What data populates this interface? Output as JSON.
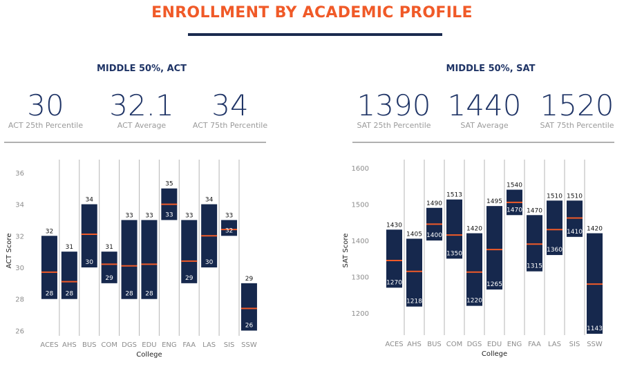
{
  "title": "ENROLLMENT BY ACADEMIC PROFILE",
  "act_section": {
    "heading": "MIDDLE 50%, ACT",
    "stats": [
      {
        "value": "30",
        "label": "ACT 25th Percentile"
      },
      {
        "value": "32.1",
        "label": "ACT Average"
      },
      {
        "value": "34",
        "label": "ACT 75th Percentile"
      }
    ]
  },
  "sat_section": {
    "heading": "MIDDLE 50%, SAT",
    "stats": [
      {
        "value": "1390",
        "label": "SAT 25th Percentile"
      },
      {
        "value": "1440",
        "label": "SAT Average"
      },
      {
        "value": "1520",
        "label": "SAT 75th Percentile"
      }
    ]
  },
  "colors": {
    "title": "#f05a28",
    "navy": "#16284d",
    "heading": "#1f3466",
    "median_line": "#f05a28",
    "grid": "#b5b5b5",
    "tick_text": "#8c8c8c"
  },
  "chart_data": [
    {
      "type": "bar",
      "subtype": "floating-range",
      "categories": [
        "ACES",
        "AHS",
        "BUS",
        "COM",
        "DGS",
        "EDU",
        "ENG",
        "FAA",
        "LAS",
        "SIS",
        "SSW"
      ],
      "low": [
        28,
        28,
        30,
        29,
        28,
        28,
        33,
        29,
        30,
        32,
        26
      ],
      "high": [
        32,
        31,
        34,
        31,
        33,
        33,
        35,
        33,
        34,
        33,
        29
      ],
      "average": [
        29.7,
        29.1,
        32.1,
        30.2,
        30.1,
        30.2,
        34,
        30.4,
        32.0,
        32.4,
        27.4
      ],
      "xlabel": "College",
      "ylabel": "ACT Score",
      "yticks": [
        26,
        28,
        30,
        32,
        34,
        36
      ],
      "ylim": [
        25.8,
        36.3
      ],
      "grid": "vertical"
    },
    {
      "type": "bar",
      "subtype": "floating-range",
      "categories": [
        "ACES",
        "AHS",
        "BUS",
        "COM",
        "DGS",
        "EDU",
        "ENG",
        "FAA",
        "LAS",
        "SIS",
        "SSW"
      ],
      "low": [
        1270,
        1218,
        1400,
        1350,
        1220,
        1265,
        1470,
        1315,
        1360,
        1410,
        1143
      ],
      "high": [
        1430,
        1405,
        1490,
        1513,
        1420,
        1495,
        1540,
        1470,
        1510,
        1510,
        1420
      ],
      "average": [
        1345,
        1315,
        1445,
        1415,
        1313,
        1375,
        1505,
        1390,
        1430,
        1462,
        1280
      ],
      "xlabel": "College",
      "ylabel": "SAT Score",
      "yticks": [
        1200,
        1300,
        1400,
        1500,
        1600
      ],
      "ylim": [
        1145,
        1600
      ],
      "grid": "vertical"
    }
  ]
}
